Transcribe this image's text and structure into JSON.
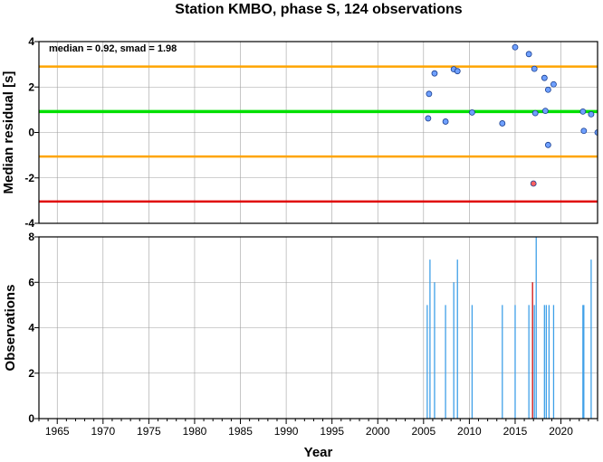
{
  "title": "Station KMBO, phase S, 124 observations",
  "annotation": "median = 0.92, smad = 1.98",
  "colors": {
    "median_line": "#00e000",
    "band_line": "#ffa500",
    "threshold_line": "#e00000",
    "point_normal": "#6fa0ff",
    "point_outlier": "#ff6060",
    "bar_normal": "#3fa0e8",
    "bar_highlight": "#d01010",
    "grid": "#a0a0a0"
  },
  "chart_data": [
    {
      "type": "scatter",
      "title": "Station KMBO, phase S, 124 observations",
      "xlabel": "",
      "ylabel": "Median residual [s]",
      "xlim": [
        1963,
        2024
      ],
      "ylim": [
        -4,
        4
      ],
      "yticks": [
        "-4",
        "-2",
        "0",
        "2",
        "4"
      ],
      "grid": true,
      "hlines": [
        {
          "y": 0.92,
          "role": "median"
        },
        {
          "y": 2.9,
          "role": "upper-band"
        },
        {
          "y": -1.06,
          "role": "lower-band"
        },
        {
          "y": -3.04,
          "role": "threshold"
        }
      ],
      "points": [
        {
          "x": 2005.5,
          "y": 0.62
        },
        {
          "x": 2005.6,
          "y": 1.7
        },
        {
          "x": 2006.2,
          "y": 2.6
        },
        {
          "x": 2007.4,
          "y": 0.48
        },
        {
          "x": 2008.3,
          "y": 2.78
        },
        {
          "x": 2008.7,
          "y": 2.7
        },
        {
          "x": 2010.3,
          "y": 0.88
        },
        {
          "x": 2013.6,
          "y": 0.4
        },
        {
          "x": 2015.0,
          "y": 3.75
        },
        {
          "x": 2016.5,
          "y": 3.45
        },
        {
          "x": 2017.1,
          "y": 2.8
        },
        {
          "x": 2017.2,
          "y": 0.85
        },
        {
          "x": 2017.0,
          "y": -2.25,
          "outlier": true
        },
        {
          "x": 2018.2,
          "y": 2.4
        },
        {
          "x": 2018.3,
          "y": 0.95
        },
        {
          "x": 2018.6,
          "y": 1.88
        },
        {
          "x": 2018.6,
          "y": -0.55
        },
        {
          "x": 2019.2,
          "y": 2.12
        },
        {
          "x": 2022.4,
          "y": 0.92
        },
        {
          "x": 2022.5,
          "y": 0.07
        },
        {
          "x": 2023.3,
          "y": 0.8
        },
        {
          "x": 2024.0,
          "y": 0.0
        }
      ]
    },
    {
      "type": "bar",
      "xlabel": "Year",
      "ylabel": "Observations",
      "xlim": [
        1963,
        2024
      ],
      "ylim": [
        0,
        8
      ],
      "xticks": [
        "1965",
        "1970",
        "1975",
        "1980",
        "1985",
        "1990",
        "1995",
        "2000",
        "2005",
        "2010",
        "2015",
        "2020"
      ],
      "yticks": [
        "0",
        "2",
        "4",
        "6",
        "8"
      ],
      "grid": true,
      "bars": [
        {
          "x": 2005.4,
          "value": 5
        },
        {
          "x": 2005.7,
          "value": 7
        },
        {
          "x": 2006.2,
          "value": 6
        },
        {
          "x": 2007.4,
          "value": 5
        },
        {
          "x": 2008.3,
          "value": 6
        },
        {
          "x": 2008.7,
          "value": 7
        },
        {
          "x": 2010.3,
          "value": 5
        },
        {
          "x": 2013.6,
          "value": 5
        },
        {
          "x": 2015.0,
          "value": 5
        },
        {
          "x": 2016.5,
          "value": 5
        },
        {
          "x": 2016.9,
          "value": 6,
          "highlight": true
        },
        {
          "x": 2017.1,
          "value": 5
        },
        {
          "x": 2017.3,
          "value": 8
        },
        {
          "x": 2018.2,
          "value": 5
        },
        {
          "x": 2018.4,
          "value": 5
        },
        {
          "x": 2018.7,
          "value": 5
        },
        {
          "x": 2019.2,
          "value": 5
        },
        {
          "x": 2022.4,
          "value": 5
        },
        {
          "x": 2022.5,
          "value": 5
        },
        {
          "x": 2023.3,
          "value": 7
        }
      ]
    }
  ]
}
